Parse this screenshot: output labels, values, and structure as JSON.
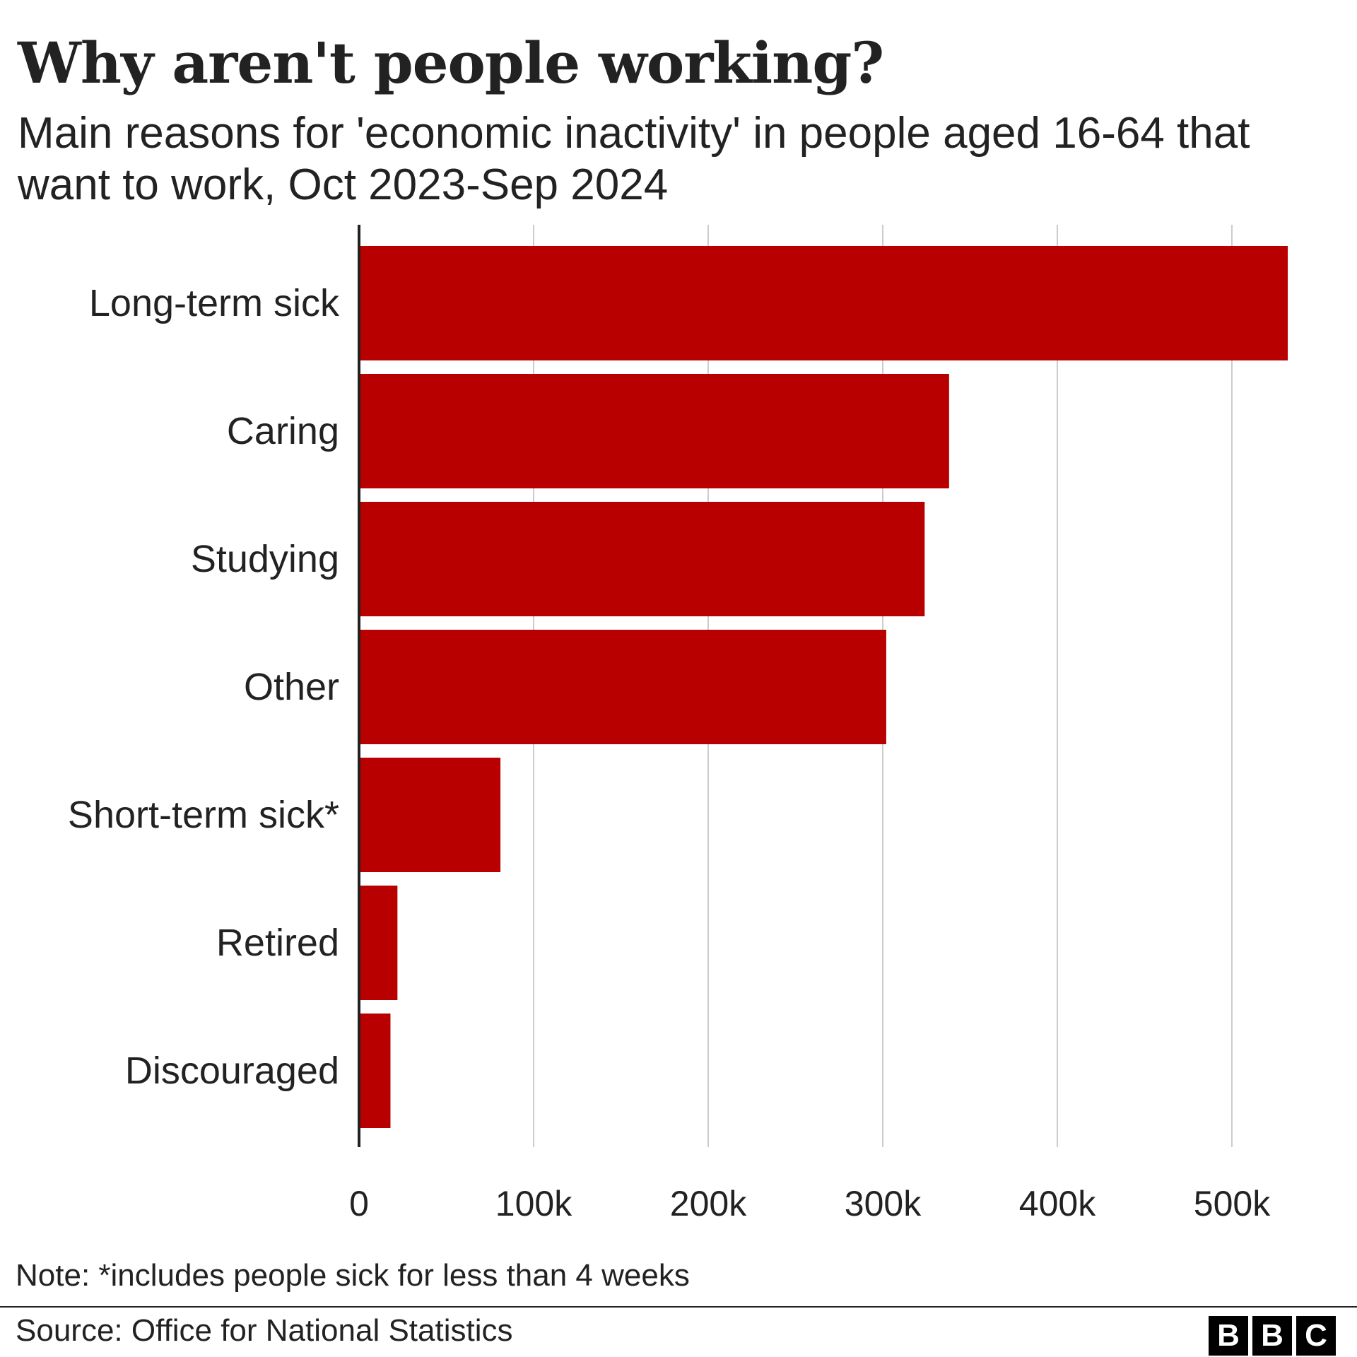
{
  "chart_data": {
    "type": "bar",
    "orientation": "horizontal",
    "title": "Why aren't people working?",
    "subtitle": "Main reasons for 'economic inactivity' in people aged 16-64 that want to work, Oct 2023-Sep 2024",
    "categories": [
      "Long-term sick",
      "Caring",
      "Studying",
      "Other",
      "Short-term sick*",
      "Retired",
      "Discouraged"
    ],
    "values": [
      532000,
      338000,
      324000,
      302000,
      81000,
      22000,
      18000
    ],
    "xlim": [
      0,
      550000
    ],
    "xticks": [
      0,
      100000,
      200000,
      300000,
      400000,
      500000
    ],
    "xtick_labels": [
      "0",
      "100k",
      "200k",
      "300k",
      "400k",
      "500k"
    ],
    "grid": "vertical",
    "bar_color": "#b80000",
    "note": "Note: *includes people sick for less than 4 weeks",
    "source": "Source: Office for National Statistics"
  },
  "branding": {
    "logo_letters": [
      "B",
      "B",
      "C"
    ]
  }
}
